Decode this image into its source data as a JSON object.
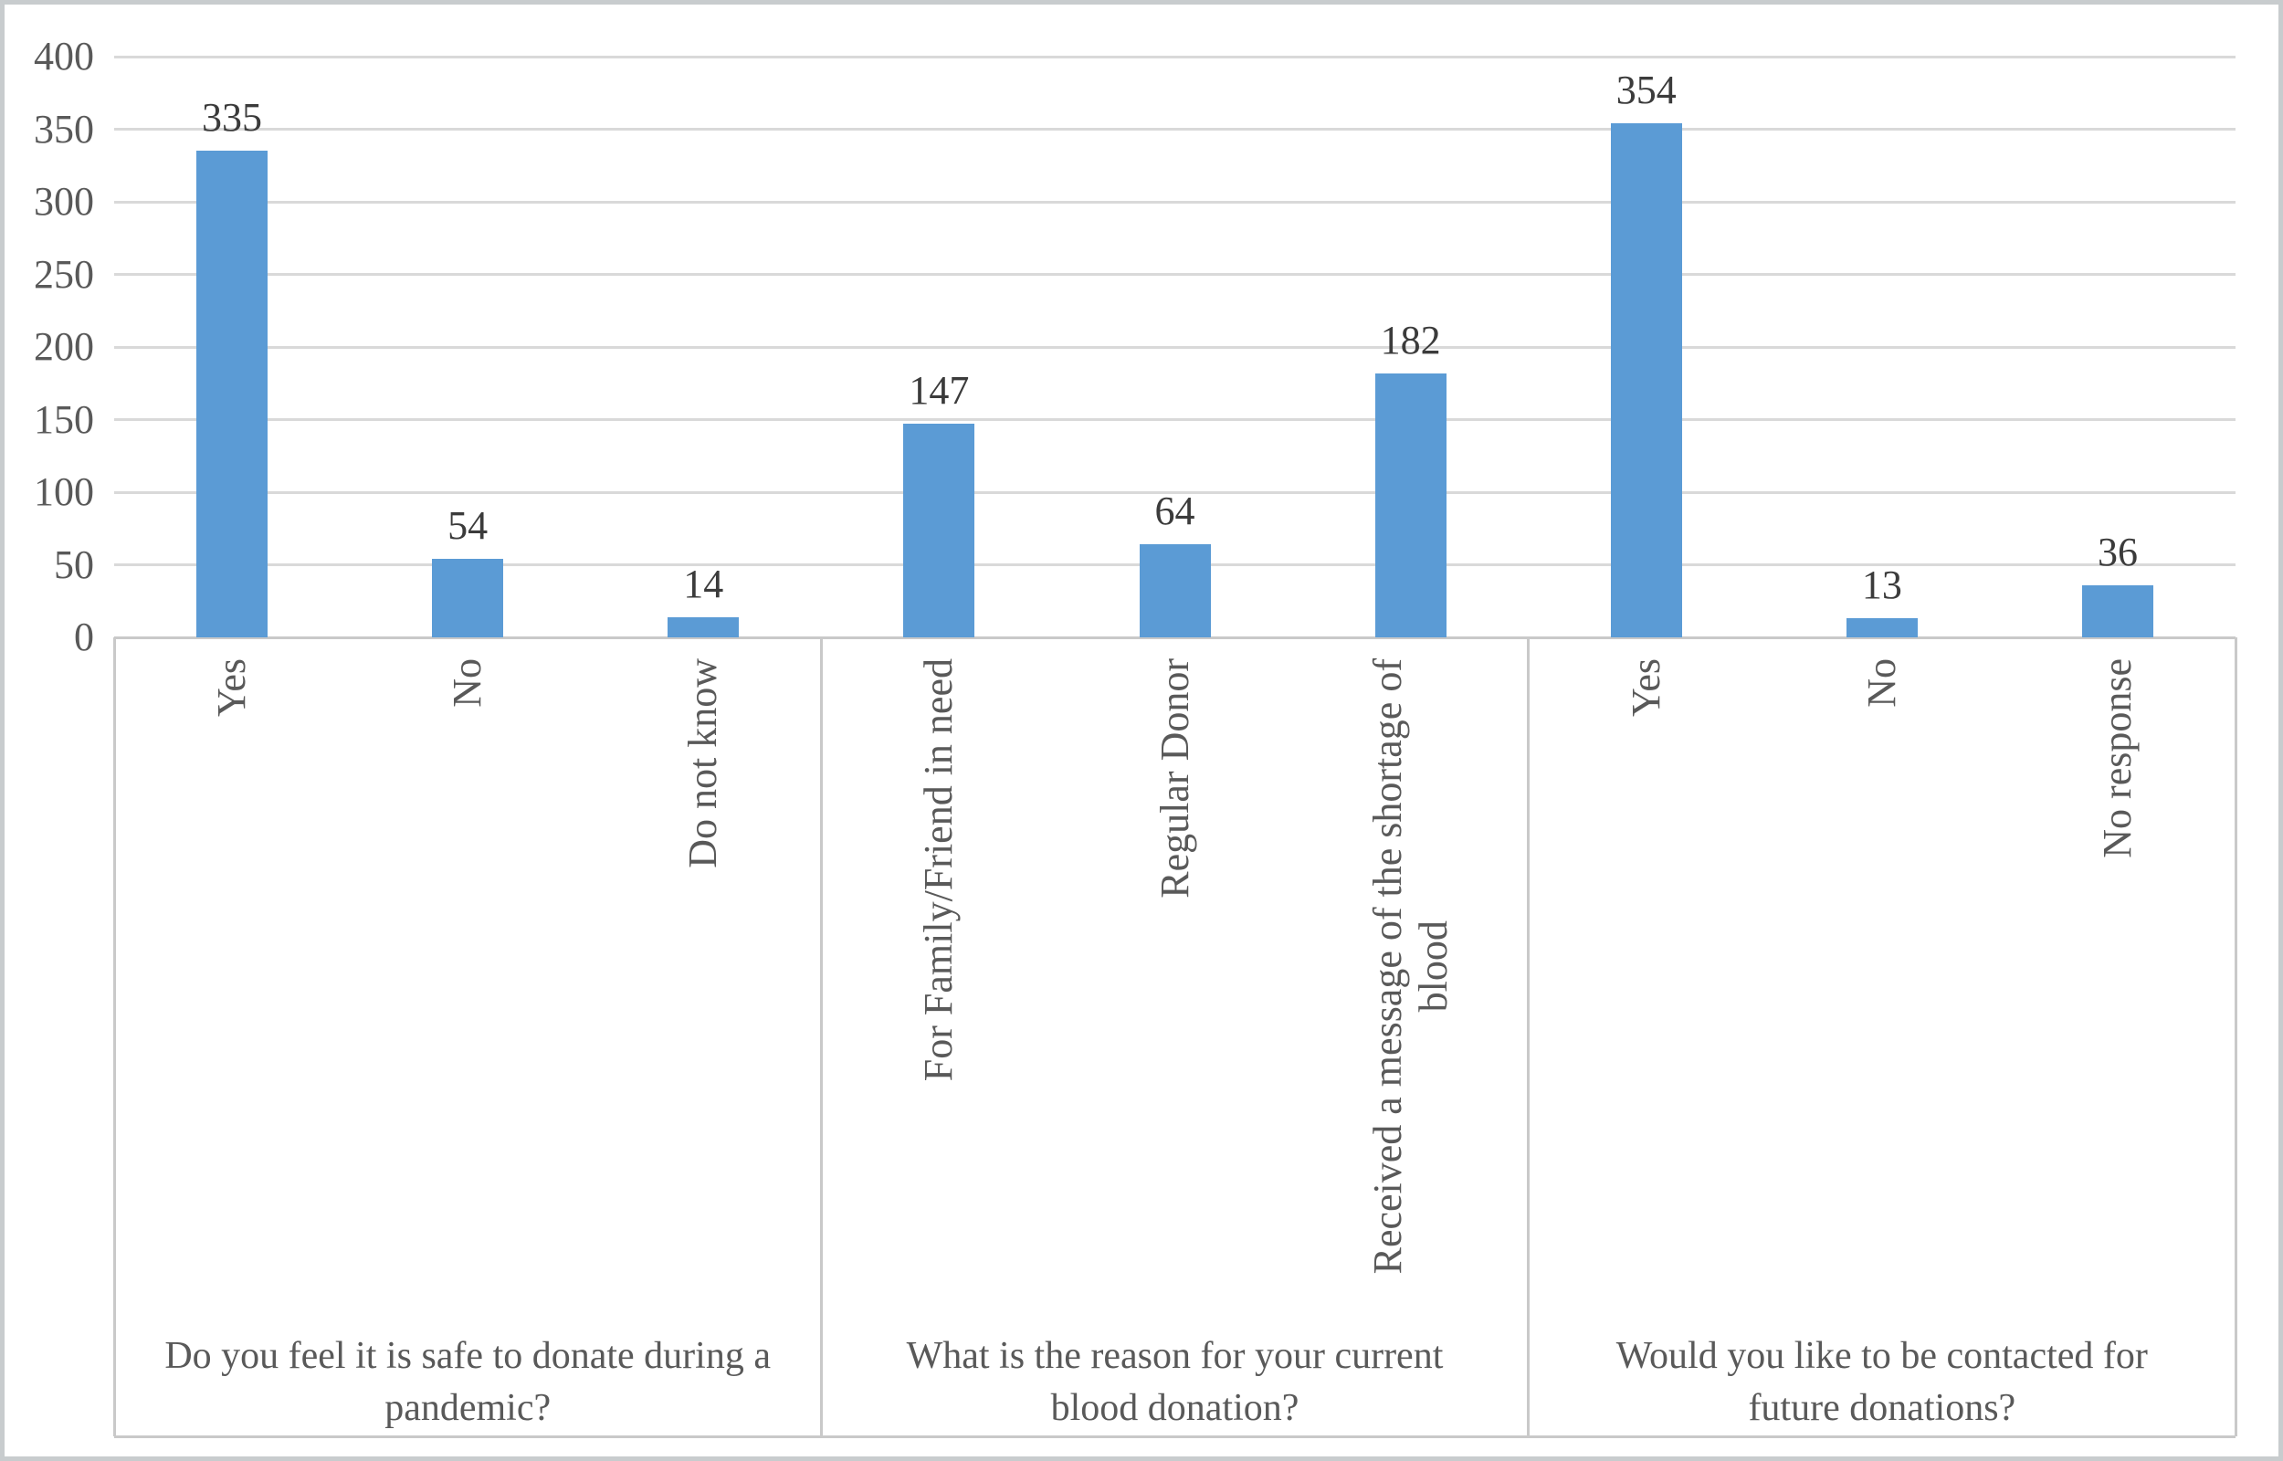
{
  "figure": {
    "kind": "grouped bar chart (survey results, Excel style)",
    "background": "#FFFFFF"
  },
  "chart_data": {
    "type": "bar",
    "title": "",
    "xlabel": "",
    "ylabel": "",
    "ylim": [
      0,
      400
    ],
    "yticks": [
      0,
      50,
      100,
      150,
      200,
      250,
      300,
      350,
      400
    ],
    "grid": true,
    "legend": false,
    "data_labels": true,
    "bar_color": "#5B9BD5",
    "groups": [
      {
        "title": "Do you feel it is safe to donate during a\npandemic?",
        "categories": [
          "Yes",
          "No",
          "Do not know"
        ],
        "values": [
          335,
          54,
          14
        ]
      },
      {
        "title": "What is the reason for your current\nblood donation?",
        "categories": [
          "For Family/Friend in need",
          "Regular Donor",
          "Received a message of the shortage of\nblood"
        ],
        "values": [
          147,
          64,
          182
        ]
      },
      {
        "title": "Would you like to be contacted for\nfuture donations?",
        "categories": [
          "Yes",
          "No",
          "No response"
        ],
        "values": [
          354,
          13,
          36
        ]
      }
    ],
    "colors": {
      "bar": "#5B9BD5",
      "gridline": "#D9D9D9",
      "axis_line": "#C9C9C9",
      "tick_text": "#595959",
      "data_label_text": "#3B3B3B",
      "outer_border": "#C8CCCE"
    }
  }
}
